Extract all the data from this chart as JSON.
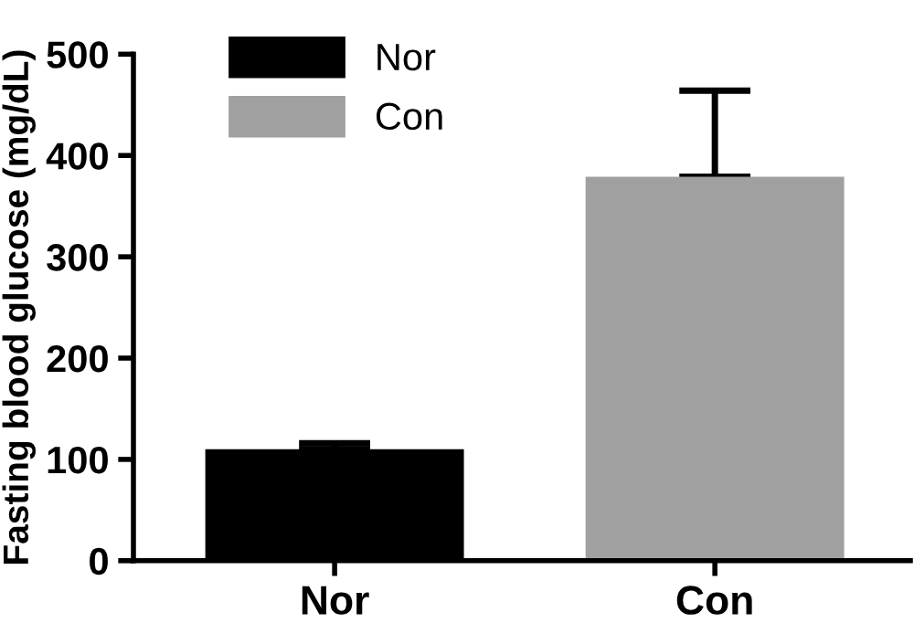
{
  "chart_data": {
    "type": "bar",
    "ylabel": "Fasting blood glucose (mg/dL)",
    "categories": [
      "Nor",
      "Con"
    ],
    "series": [
      {
        "name": "Nor",
        "color": "#000000",
        "values": [
          110,
          null
        ],
        "errors": [
          [
            110,
            116
          ],
          null
        ]
      },
      {
        "name": "Con",
        "color": "#a0a0a0",
        "values": [
          null,
          379
        ],
        "errors": [
          null,
          [
            379,
            464
          ]
        ]
      }
    ],
    "ylim": [
      0,
      500
    ],
    "yticks": [
      0,
      100,
      200,
      300,
      400,
      500
    ],
    "grid": false,
    "legend": "top left"
  }
}
